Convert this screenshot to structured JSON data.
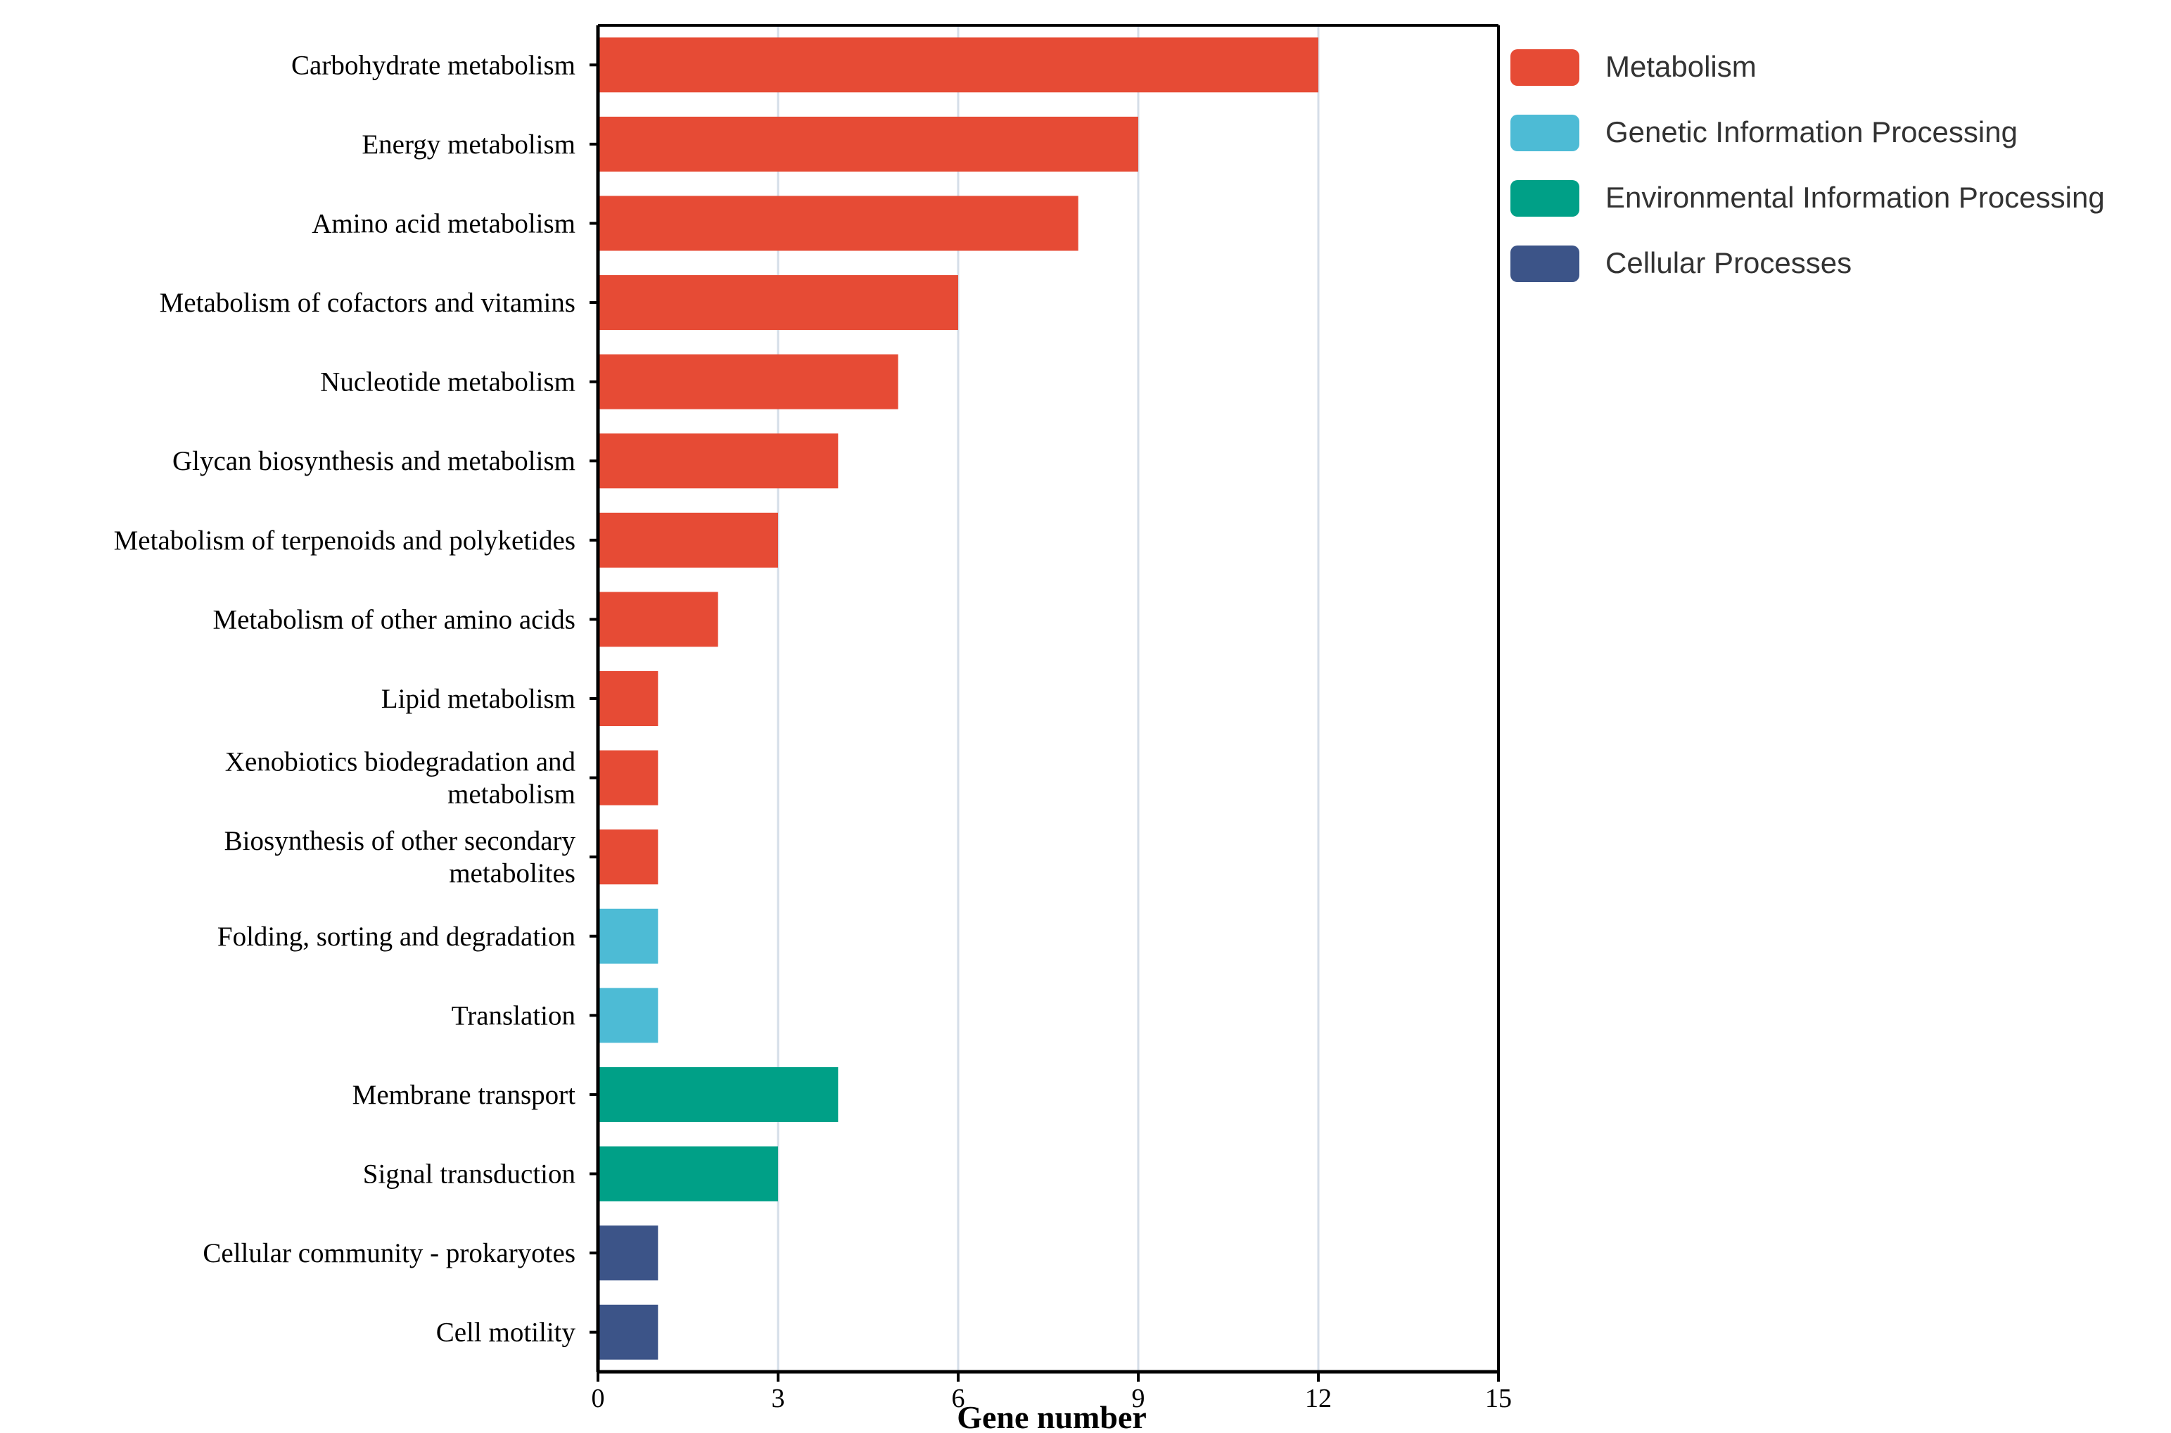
{
  "chart_data": {
    "type": "bar",
    "orientation": "horizontal",
    "title": "",
    "xlabel": "Gene number",
    "ylabel": "",
    "xlim": [
      0,
      15
    ],
    "xticks": [
      0,
      3,
      6,
      9,
      12,
      15
    ],
    "grid": true,
    "legend_position": "top-right",
    "groups": [
      {
        "name": "Metabolism",
        "color": "#E64B35"
      },
      {
        "name": "Genetic Information Processing",
        "color": "#4DBBD5"
      },
      {
        "name": "Environmental Information Processing",
        "color": "#00A087"
      },
      {
        "name": "Cellular Processes",
        "color": "#3C5488"
      }
    ],
    "bars": [
      {
        "category": [
          "Carbohydrate metabolism"
        ],
        "value": 12,
        "group": 0
      },
      {
        "category": [
          "Energy metabolism"
        ],
        "value": 9,
        "group": 0
      },
      {
        "category": [
          "Amino acid metabolism"
        ],
        "value": 8,
        "group": 0
      },
      {
        "category": [
          "Metabolism of cofactors and vitamins"
        ],
        "value": 6,
        "group": 0
      },
      {
        "category": [
          "Nucleotide metabolism"
        ],
        "value": 5,
        "group": 0
      },
      {
        "category": [
          "Glycan biosynthesis and metabolism"
        ],
        "value": 4,
        "group": 0
      },
      {
        "category": [
          "Metabolism of terpenoids and polyketides"
        ],
        "value": 3,
        "group": 0
      },
      {
        "category": [
          "Metabolism of other amino acids"
        ],
        "value": 2,
        "group": 0
      },
      {
        "category": [
          "Lipid metabolism"
        ],
        "value": 1,
        "group": 0
      },
      {
        "category": [
          "Xenobiotics biodegradation and",
          "metabolism"
        ],
        "value": 1,
        "group": 0
      },
      {
        "category": [
          "Biosynthesis of other secondary",
          "metabolites"
        ],
        "value": 1,
        "group": 0
      },
      {
        "category": [
          "Folding, sorting and degradation"
        ],
        "value": 1,
        "group": 1
      },
      {
        "category": [
          "Translation"
        ],
        "value": 1,
        "group": 1
      },
      {
        "category": [
          "Membrane transport"
        ],
        "value": 4,
        "group": 2
      },
      {
        "category": [
          "Signal transduction"
        ],
        "value": 3,
        "group": 2
      },
      {
        "category": [
          "Cellular community - prokaryotes"
        ],
        "value": 1,
        "group": 3
      },
      {
        "category": [
          "Cell motility"
        ],
        "value": 1,
        "group": 3
      }
    ]
  }
}
